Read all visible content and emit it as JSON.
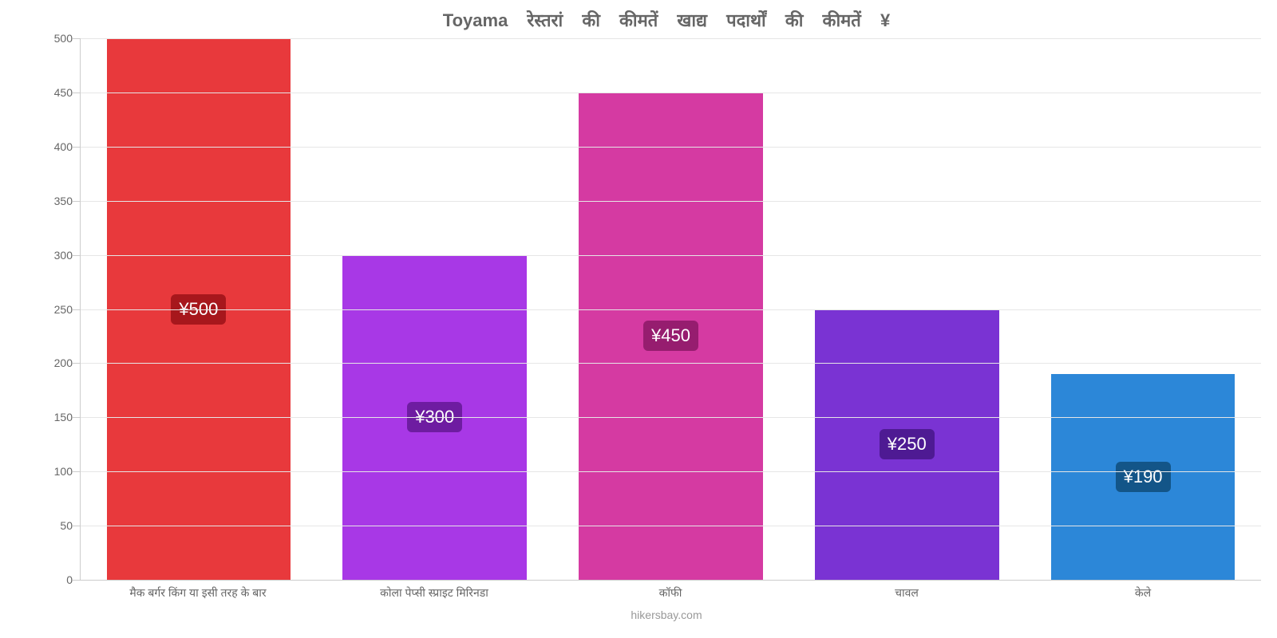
{
  "chart": {
    "type": "bar",
    "title": "Toyama रेस्तरां की कीमतें खाद्य पदार्थों की कीमतें ¥",
    "title_fontsize": 22,
    "title_color": "#666666",
    "source": "hikersbay.com",
    "background_color": "#ffffff",
    "grid_color": "#e6e6e6",
    "axis_color": "#cccccc",
    "ylim": [
      0,
      500
    ],
    "ytick_step": 50,
    "yticks": [
      0,
      50,
      100,
      150,
      200,
      250,
      300,
      350,
      400,
      450,
      500
    ],
    "label_fontsize": 14,
    "label_color": "#666666",
    "bar_width": 0.78,
    "badge_fontsize": 22,
    "badge_radius": 6,
    "categories": [
      "मैक बर्गर किंग या इसी तरह के बार",
      "कोला पेप्सी स्प्राइट मिरिनडा",
      "कॉफी",
      "चावल",
      "केले"
    ],
    "values": [
      500,
      300,
      450,
      250,
      190
    ],
    "value_labels": [
      "¥500",
      "¥300",
      "¥450",
      "¥250",
      "¥190"
    ],
    "bar_colors": [
      "#e8393c",
      "#a838e6",
      "#d53aa2",
      "#7a33d3",
      "#2c87d8"
    ],
    "badge_colors": [
      "#a7171c",
      "#6e1ca1",
      "#961d6f",
      "#4e1a93",
      "#135588"
    ]
  }
}
